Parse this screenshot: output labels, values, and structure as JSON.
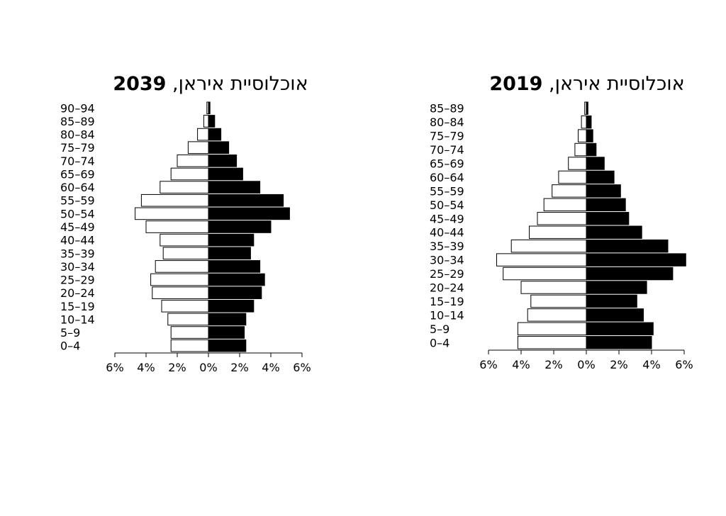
{
  "chart_data": [
    {
      "type": "bar",
      "orientation": "population-pyramid",
      "title_text": "אוכלוסיית איראן, ",
      "title_year": "2039",
      "categories": [
        "0–4",
        "5–9",
        "10–14",
        "15–19",
        "20–24",
        "25–29",
        "30–34",
        "35–39",
        "40–44",
        "45–49",
        "50–54",
        "55–59",
        "60–64",
        "65–69",
        "70–74",
        "75–79",
        "80–84",
        "85–89",
        "90–94"
      ],
      "series": [
        {
          "values": [
            2.4,
            2.4,
            2.6,
            3.0,
            3.6,
            3.7,
            3.4,
            2.9,
            3.1,
            4.0,
            4.7,
            4.3,
            3.1,
            2.4,
            2.0,
            1.3,
            0.7,
            0.3,
            0.1
          ]
        },
        {
          "values": [
            2.4,
            2.3,
            2.4,
            2.9,
            3.4,
            3.6,
            3.3,
            2.7,
            2.9,
            4.0,
            5.2,
            4.8,
            3.3,
            2.2,
            1.8,
            1.3,
            0.8,
            0.4,
            0.1
          ]
        }
      ],
      "xlim": [
        -6,
        6
      ],
      "xticks": [
        "6%",
        "4%",
        "2%",
        "0%",
        "2%",
        "4%",
        "6%"
      ],
      "colors": {
        "left_fill": "#ffffff",
        "right_fill": "#000000",
        "stroke": "#000000"
      }
    },
    {
      "type": "bar",
      "orientation": "population-pyramid",
      "title_text": "אוכלוסיית איראן, ",
      "title_year": "2019",
      "categories": [
        "0–4",
        "5–9",
        "10–14",
        "15–19",
        "20–24",
        "25–29",
        "30–34",
        "35–39",
        "40–44",
        "45–49",
        "50–54",
        "55–59",
        "60–64",
        "65–69",
        "70–74",
        "75–79",
        "80–84",
        "85–89"
      ],
      "series": [
        {
          "values": [
            4.2,
            4.2,
            3.6,
            3.4,
            4.0,
            5.1,
            5.5,
            4.6,
            3.5,
            3.0,
            2.6,
            2.1,
            1.7,
            1.1,
            0.7,
            0.5,
            0.3,
            0.1
          ]
        },
        {
          "values": [
            4.0,
            4.1,
            3.5,
            3.1,
            3.7,
            5.3,
            6.1,
            5.0,
            3.4,
            2.6,
            2.4,
            2.1,
            1.7,
            1.1,
            0.6,
            0.4,
            0.3,
            0.1
          ]
        }
      ],
      "xlim": [
        -6,
        6
      ],
      "xticks": [
        "6%",
        "4%",
        "2%",
        "0%",
        "2%",
        "4%",
        "6%"
      ],
      "colors": {
        "left_fill": "#ffffff",
        "right_fill": "#000000",
        "stroke": "#000000"
      }
    }
  ]
}
